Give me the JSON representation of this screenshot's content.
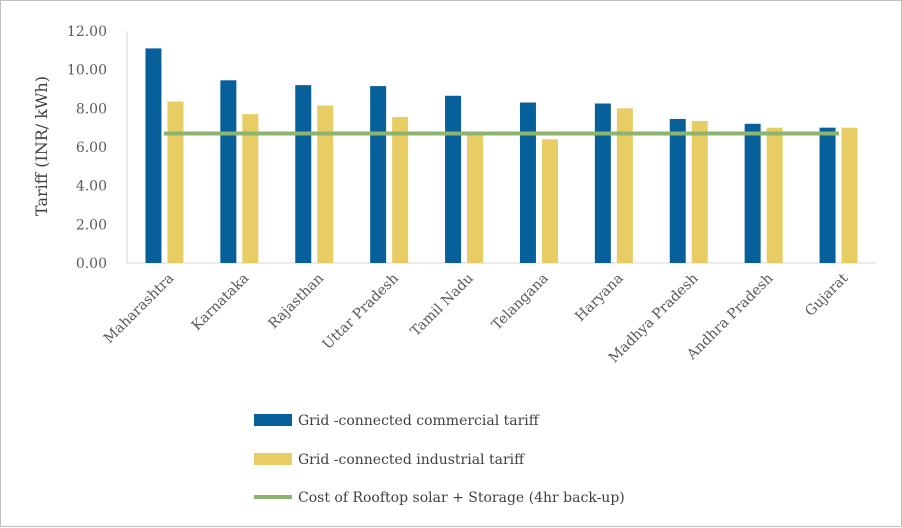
{
  "chart_data": {
    "type": "bar",
    "ylabel": "Tariff (INR/ kWh)",
    "ylim": [
      0,
      12
    ],
    "yticks": [
      "0.00",
      "2.00",
      "4.00",
      "6.00",
      "8.00",
      "10.00",
      "12.00"
    ],
    "categories": [
      "Maharashtra",
      "Karnataka",
      "Rajasthan",
      "Uttar Pradesh",
      "Tamil Nadu",
      "Telangana",
      "Haryana",
      "Madhya Pradesh",
      "Andhra Pradesh",
      "Gujarat"
    ],
    "series": [
      {
        "name": "Grid -connected commercial tariff",
        "type": "bar",
        "color": "#07609a",
        "values": [
          11.1,
          9.45,
          9.2,
          9.15,
          8.65,
          8.3,
          8.25,
          7.45,
          7.2,
          7.0
        ]
      },
      {
        "name": "Grid -connected industrial tariff",
        "type": "bar",
        "color": "#e8cd65",
        "values": [
          8.35,
          7.7,
          8.15,
          7.55,
          6.65,
          6.4,
          8.0,
          7.35,
          7.0,
          7.0
        ]
      },
      {
        "name": "Cost of Rooftop solar + Storage (4hr back-up)",
        "type": "line",
        "color": "#8db46f",
        "value": 6.7
      }
    ],
    "legend_position": "bottom",
    "grid": false
  }
}
